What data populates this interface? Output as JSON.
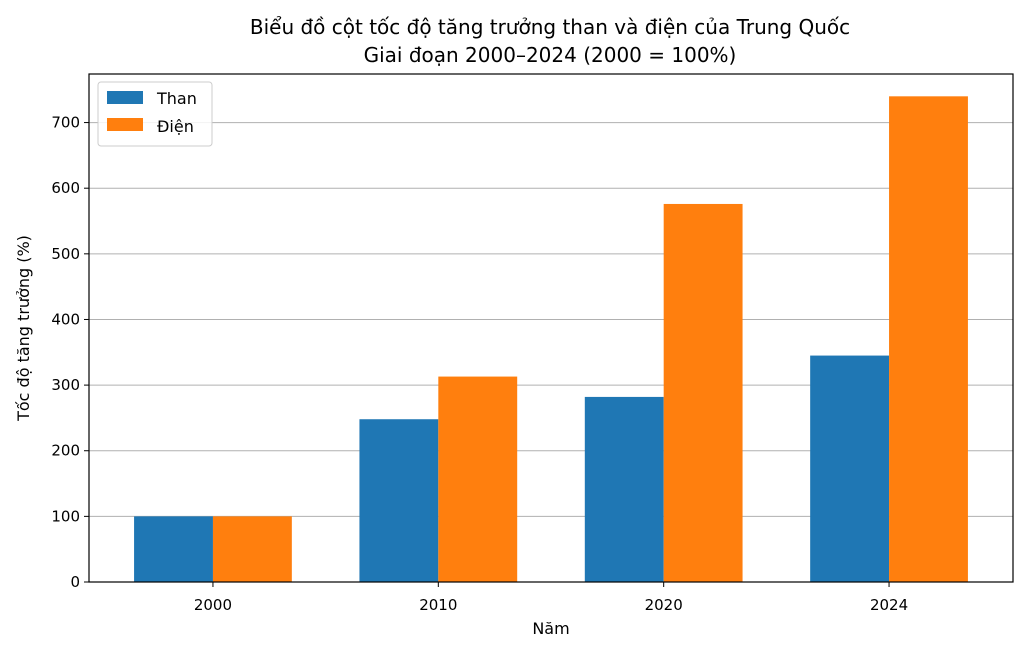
{
  "chart_data": {
    "type": "bar",
    "title": "Biểu đồ cột tốc độ tăng trưởng than và điện của Trung Quốc",
    "subtitle": "Giai đoạn 2000–2024 (2000 = 100%)",
    "xlabel": "Năm",
    "ylabel": "Tốc độ tăng trưởng (%)",
    "categories": [
      "2000",
      "2010",
      "2020",
      "2024"
    ],
    "series": [
      {
        "name": "Than",
        "color": "#1f77b4",
        "values": [
          100,
          248,
          282,
          345
        ]
      },
      {
        "name": "Điện",
        "color": "#ff7f0e",
        "values": [
          100,
          313,
          576,
          740
        ]
      }
    ],
    "ylim": [
      0,
      774
    ],
    "yticks": [
      0,
      100,
      200,
      300,
      400,
      500,
      600,
      700
    ],
    "grid": "y",
    "legend_position": "top-left"
  }
}
